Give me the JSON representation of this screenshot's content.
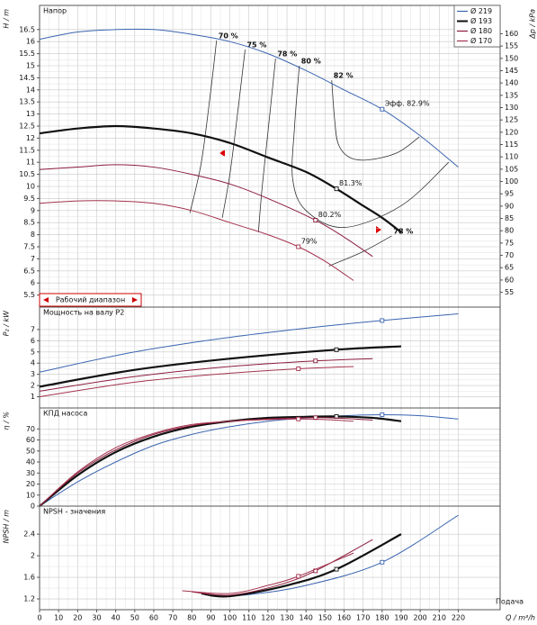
{
  "chart_data": [
    {
      "type": "line",
      "title": "Напор",
      "ylabel": "H / m",
      "ylim": [
        5,
        17.5
      ],
      "yticks": [
        5.5,
        6,
        6.5,
        7,
        7.5,
        8,
        8.5,
        9,
        9.5,
        10,
        10.5,
        11,
        11.5,
        12,
        12.5,
        13,
        13.5,
        14,
        14.5,
        15,
        15.5,
        16,
        16.5
      ],
      "y2label": "Δp / kPa",
      "y2lim": [
        49,
        171.5
      ],
      "y2ticks": [
        55,
        60,
        65,
        70,
        75,
        80,
        85,
        90,
        95,
        100,
        105,
        110,
        115,
        120,
        125,
        130,
        135,
        140,
        145,
        150,
        155,
        160
      ],
      "legend": "upper right",
      "grid": true,
      "operating_range_label": "Рабочий диапазон",
      "series": [
        {
          "name": "Ø 219",
          "color": "#3a64b0",
          "x": [
            0,
            20,
            40,
            60,
            80,
            100,
            120,
            140,
            160,
            180,
            200,
            220
          ],
          "values": [
            16.1,
            16.4,
            16.5,
            16.5,
            16.3,
            16.0,
            15.5,
            14.8,
            14.0,
            13.2,
            12.1,
            10.8
          ],
          "duty_x": 180,
          "duty_value": 13.2,
          "duty_label": "Эфф. 82.9%"
        },
        {
          "name": "Ø 193",
          "color": "#111111",
          "x": [
            0,
            20,
            40,
            60,
            80,
            100,
            120,
            140,
            156,
            170,
            180,
            190
          ],
          "values": [
            12.2,
            12.4,
            12.5,
            12.4,
            12.2,
            11.8,
            11.2,
            10.6,
            9.9,
            9.2,
            8.7,
            8.1
          ],
          "duty_x": 156,
          "duty_value": 9.9,
          "duty_label": "81.3%"
        },
        {
          "name": "Ø 180",
          "color": "#8c1c3c",
          "x": [
            0,
            20,
            40,
            60,
            80,
            100,
            120,
            145,
            160,
            175
          ],
          "values": [
            10.7,
            10.8,
            10.9,
            10.8,
            10.5,
            10.1,
            9.5,
            8.6,
            7.9,
            7.1
          ],
          "duty_x": 145,
          "duty_value": 8.6,
          "duty_label": "80.2%"
        },
        {
          "name": "Ø 170",
          "color": "#a3324e",
          "x": [
            0,
            20,
            40,
            60,
            80,
            100,
            120,
            136,
            150,
            165
          ],
          "values": [
            9.3,
            9.4,
            9.4,
            9.3,
            9.0,
            8.5,
            8.0,
            7.5,
            6.9,
            6.1
          ],
          "duty_x": 136,
          "duty_value": 7.5,
          "duty_label": "79%"
        }
      ],
      "iso_efficiency": [
        {
          "label": "70 %",
          "x": [
            93,
            90,
            85,
            79
          ],
          "values": [
            16.05,
            14,
            11,
            8.9
          ]
        },
        {
          "label": "75 %",
          "x": [
            108,
            104,
            100,
            96
          ],
          "values": [
            15.67,
            13,
            10.5,
            8.7
          ]
        },
        {
          "label": "78 %",
          "x": [
            124,
            121,
            117,
            115
          ],
          "values": [
            15.3,
            13,
            10,
            8.1
          ]
        },
        {
          "label": "80 %",
          "x": [
            136.5,
            134,
            133,
            140,
            160,
            190,
            215
          ],
          "values": [
            15.0,
            12.5,
            10.3,
            9.0,
            8.3,
            9.2,
            11.0
          ]
        },
        {
          "label": "82 %",
          "x": [
            153.5,
            155,
            157,
            163,
            173,
            188,
            199.5
          ],
          "values": [
            14.4,
            12.8,
            11.75,
            11.2,
            11.1,
            11.4,
            12.05
          ]
        },
        {
          "label": "78 %",
          "x": [
            185,
            170,
            152
          ],
          "values": [
            7.95,
            7.3,
            6.7
          ]
        }
      ]
    },
    {
      "type": "line",
      "title": "Мощность на валу P2",
      "ylabel": "P₂ / kW",
      "ylim": [
        0,
        9
      ],
      "yticks": [
        1,
        2,
        3,
        4,
        5,
        6,
        7
      ],
      "grid": true,
      "series": [
        {
          "color": "#3a64b0",
          "x": [
            0,
            50,
            100,
            150,
            180,
            220
          ],
          "values": [
            3.2,
            5.0,
            6.3,
            7.3,
            7.8,
            8.4
          ],
          "duty_x": 180,
          "duty_value": 7.8
        },
        {
          "color": "#111111",
          "x": [
            0,
            50,
            100,
            156,
            190
          ],
          "values": [
            1.9,
            3.4,
            4.4,
            5.2,
            5.5
          ],
          "duty_x": 156,
          "duty_value": 5.2
        },
        {
          "color": "#8c1c3c",
          "x": [
            0,
            50,
            100,
            145,
            175
          ],
          "values": [
            1.5,
            2.8,
            3.7,
            4.2,
            4.4
          ],
          "duty_x": 145,
          "duty_value": 4.2
        },
        {
          "color": "#a3324e",
          "x": [
            0,
            50,
            100,
            136,
            165
          ],
          "values": [
            1.0,
            2.3,
            3.1,
            3.5,
            3.7
          ],
          "duty_x": 136,
          "duty_value": 3.5
        }
      ]
    },
    {
      "type": "line",
      "title": "КПД насоса",
      "ylabel": "η / %",
      "ylim": [
        0,
        89
      ],
      "yticks": [
        0,
        10,
        20,
        30,
        40,
        50,
        60,
        70
      ],
      "grid": true,
      "series": [
        {
          "color": "#3a64b0",
          "x": [
            0,
            20,
            40,
            60,
            80,
            100,
            120,
            140,
            160,
            180,
            200,
            220
          ],
          "values": [
            0,
            22,
            40,
            55,
            65,
            72,
            77,
            80,
            82,
            82.9,
            82,
            79
          ],
          "duty_x": 180,
          "duty_value": 82.9
        },
        {
          "color": "#111111",
          "x": [
            0,
            20,
            40,
            60,
            80,
            100,
            120,
            140,
            156,
            175,
            190
          ],
          "values": [
            0,
            28,
            49,
            63,
            72,
            77,
            80,
            81,
            81.3,
            80,
            77
          ],
          "duty_x": 156,
          "duty_value": 81.3
        },
        {
          "color": "#8c1c3c",
          "x": [
            0,
            20,
            40,
            60,
            80,
            100,
            120,
            145,
            160,
            175
          ],
          "values": [
            0,
            30,
            51,
            65,
            73,
            77,
            79,
            80.2,
            79.5,
            78
          ],
          "duty_x": 145,
          "duty_value": 80.2
        },
        {
          "color": "#a3324e",
          "x": [
            0,
            20,
            40,
            60,
            80,
            100,
            120,
            136,
            150,
            165
          ],
          "values": [
            0,
            31,
            53,
            66,
            74,
            77,
            78.5,
            79,
            78.5,
            77
          ],
          "duty_x": 136,
          "duty_value": 79
        }
      ]
    },
    {
      "type": "line",
      "title": "NPSH - значения",
      "ylabel": "NPSH / m",
      "ylim": [
        1.0,
        2.92
      ],
      "yticks": [
        1.2,
        1.6,
        2,
        2.4
      ],
      "grid": true,
      "xlim": [
        0,
        242
      ],
      "xticks": [
        0,
        10,
        20,
        30,
        40,
        50,
        60,
        70,
        80,
        90,
        100,
        110,
        120,
        130,
        140,
        150,
        160,
        170,
        180,
        190,
        200,
        210,
        220
      ],
      "xlabel": "Q / m³/h",
      "xlabel_note": "Подача",
      "series": [
        {
          "color": "#3a64b0",
          "x": [
            90,
            110,
            140,
            180,
            220
          ],
          "values": [
            1.25,
            1.28,
            1.45,
            1.88,
            2.75
          ],
          "duty_x": 180,
          "duty_value": 1.88
        },
        {
          "color": "#111111",
          "x": [
            85,
            100,
            130,
            156,
            190
          ],
          "values": [
            1.3,
            1.25,
            1.45,
            1.75,
            2.4
          ],
          "duty_x": 156,
          "duty_value": 1.75
        },
        {
          "color": "#8c1c3c",
          "x": [
            80,
            100,
            125,
            145,
            175
          ],
          "values": [
            1.33,
            1.27,
            1.45,
            1.72,
            2.3
          ],
          "duty_x": 145,
          "duty_value": 1.72
        },
        {
          "color": "#a3324e",
          "x": [
            75,
            100,
            120,
            136,
            165
          ],
          "values": [
            1.35,
            1.3,
            1.45,
            1.62,
            2.05
          ],
          "duty_x": 136,
          "duty_value": 1.62
        }
      ]
    }
  ]
}
